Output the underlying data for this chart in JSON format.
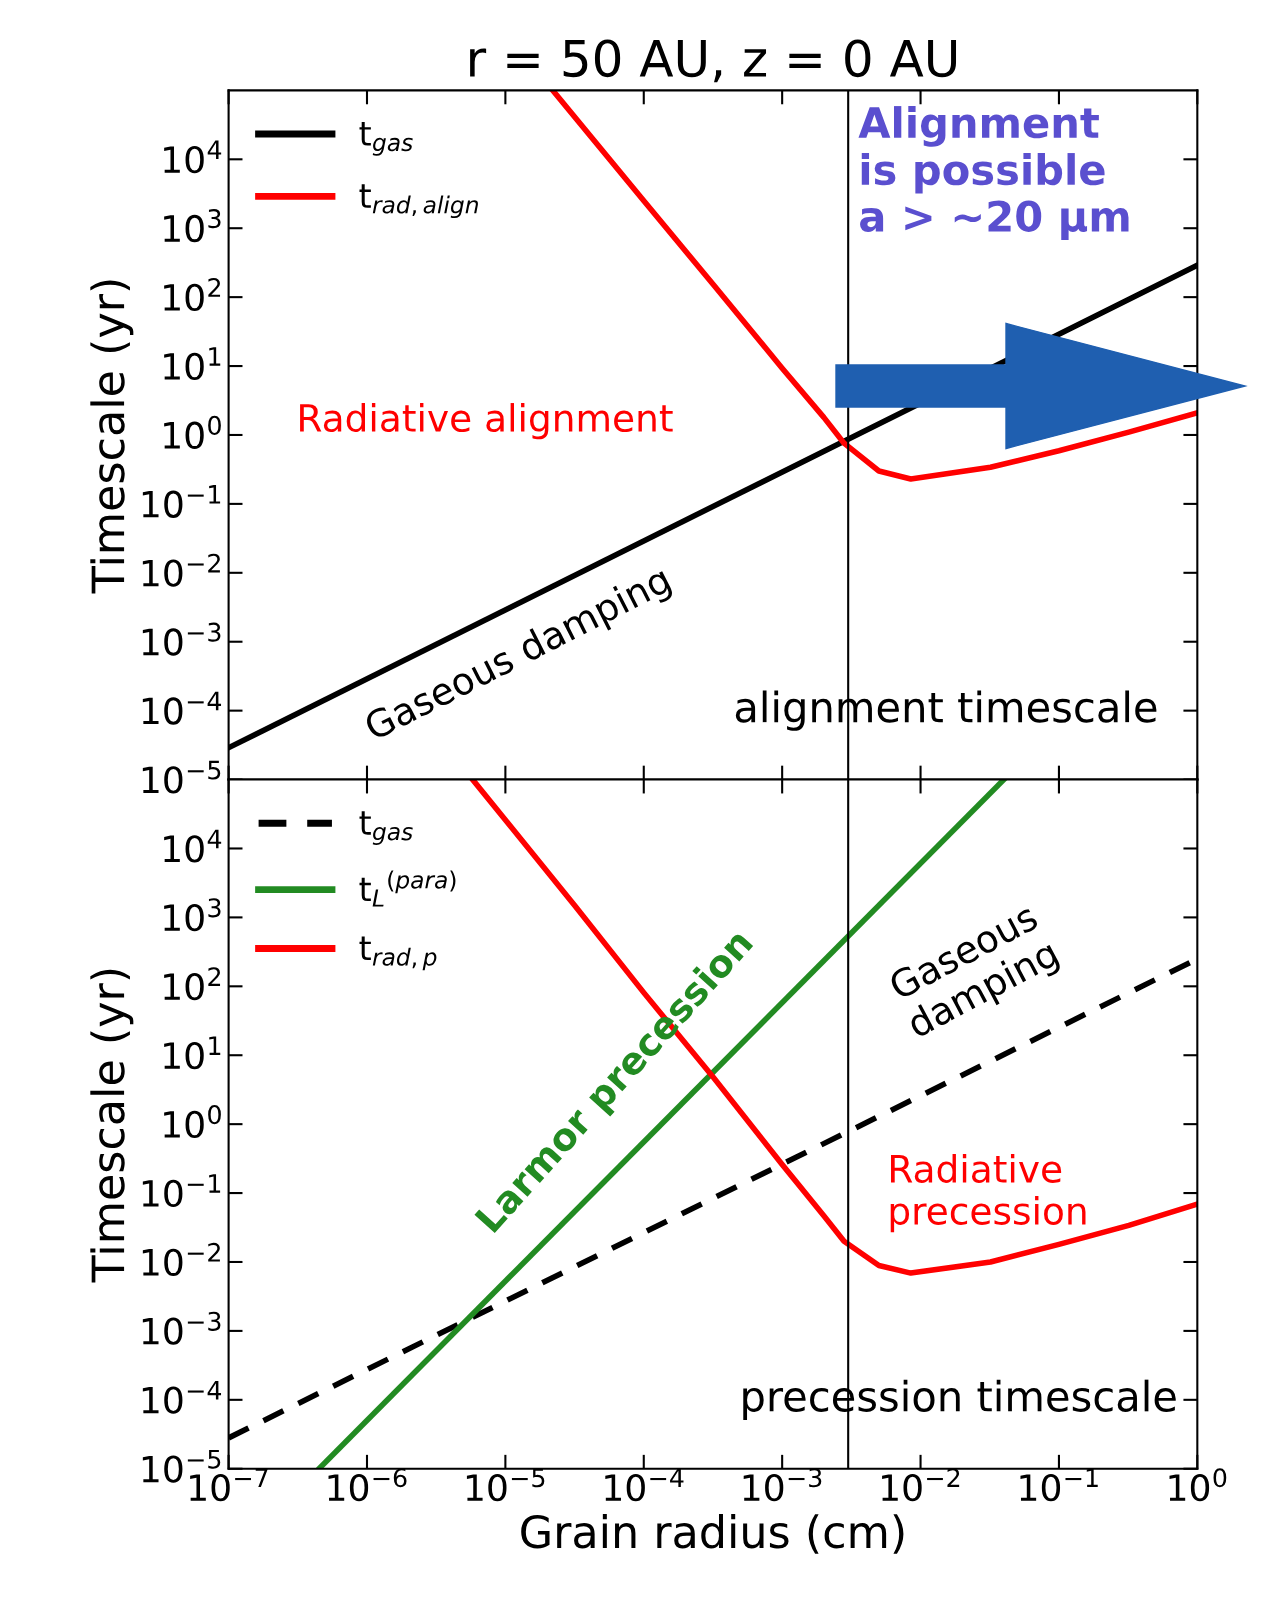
{
  "chart_data": [
    {
      "type": "line",
      "title": "r = 50 AU, z = 0 AU",
      "ylabel": "Timescale (yr)",
      "log": "xy",
      "grid": false,
      "legend": "top left",
      "tick_labels": "y",
      "xlim": [
        1e-07,
        1
      ],
      "ylim": [
        1e-05,
        100000.0
      ],
      "xticks": [
        {
          "value": 1e-07,
          "label": null
        },
        {
          "value": 1e-06,
          "label": null
        },
        {
          "value": 1e-05,
          "label": null
        },
        {
          "value": 0.0001,
          "label": null
        },
        {
          "value": 0.001,
          "label": null
        },
        {
          "value": 0.01,
          "label": null
        },
        {
          "value": 0.1,
          "label": null
        },
        {
          "value": 1,
          "label": null
        }
      ],
      "yticks": [
        {
          "value": 1e-05,
          "label": "10$^{−5}$"
        },
        {
          "value": 0.0001,
          "label": "10$^{−4}$"
        },
        {
          "value": 0.001,
          "label": "10$^{−3}$"
        },
        {
          "value": 0.01,
          "label": "10$^{−2}$"
        },
        {
          "value": 0.1,
          "label": "10$^{−1}$"
        },
        {
          "value": 1,
          "label": "10$^{0}$"
        },
        {
          "value": 10,
          "label": "10$^{1}$"
        },
        {
          "value": 100,
          "label": "10$^{2}$"
        },
        {
          "value": 1000,
          "label": "10$^{3}$"
        },
        {
          "value": 10000,
          "label": "10$^{4}$"
        }
      ],
      "series": [
        {
          "name": "t$_{gas}$",
          "color": "#000000",
          "line_style": "solid",
          "x": [
            1e-07,
            1
          ],
          "values": [
            2.9e-05,
            290
          ]
        },
        {
          "name": "t$_{rad,align}$",
          "color": "#ff0000",
          "line_style": "solid",
          "x": [
            2.2e-05,
            0.0001,
            0.00032,
            0.001,
            0.002,
            0.0028,
            0.005,
            0.0085,
            0.032,
            0.1,
            0.32,
            1
          ],
          "values": [
            100000.0,
            2500,
            150,
            9.3,
            1.8,
            0.76,
            0.3,
            0.23,
            0.34,
            0.59,
            1.1,
            2.1
          ]
        }
      ],
      "ref_lines": [
        {
          "axis": "x",
          "value": 0.003,
          "color": "#000000"
        }
      ],
      "annotations": [
        "Alignment\nis possible\na > ~20 μm",
        "Radiative alignment",
        "Gaseous damping",
        "alignment timescale"
      ]
    },
    {
      "type": "line",
      "xlabel": "Grain radius (cm)",
      "ylabel": "Timescale (yr)",
      "log": "xy",
      "grid": false,
      "legend": "top left",
      "xlim": [
        1e-07,
        1
      ],
      "ylim": [
        1e-05,
        100000.0
      ],
      "xticks": [
        {
          "value": 1e-07,
          "label": "10$^{−7}$"
        },
        {
          "value": 1e-06,
          "label": "10$^{−6}$"
        },
        {
          "value": 1e-05,
          "label": "10$^{−5}$"
        },
        {
          "value": 0.0001,
          "label": "10$^{−4}$"
        },
        {
          "value": 0.001,
          "label": "10$^{−3}$"
        },
        {
          "value": 0.01,
          "label": "10$^{−2}$"
        },
        {
          "value": 0.1,
          "label": "10$^{−1}$"
        },
        {
          "value": 1,
          "label": "10$^{0}$"
        }
      ],
      "yticks": [
        {
          "value": 1e-05,
          "label": "10$^{−5}$"
        },
        {
          "value": 0.0001,
          "label": "10$^{−4}$"
        },
        {
          "value": 0.001,
          "label": "10$^{−3}$"
        },
        {
          "value": 0.01,
          "label": "10$^{−2}$"
        },
        {
          "value": 0.1,
          "label": "10$^{−1}$"
        },
        {
          "value": 1,
          "label": "10$^{0}$"
        },
        {
          "value": 10,
          "label": "10$^{1}$"
        },
        {
          "value": 100,
          "label": "10$^{2}$"
        },
        {
          "value": 1000,
          "label": "10$^{3}$"
        },
        {
          "value": 10000,
          "label": "10$^{4}$"
        }
      ],
      "series": [
        {
          "name": "t$_{gas}$",
          "color": "#000000",
          "line_style": "dashed",
          "x": [
            1e-07,
            1
          ],
          "values": [
            2.8e-05,
            250
          ]
        },
        {
          "name": "t$_{L}$$^{(para)}$",
          "color": "#228b22",
          "line_style": "solid",
          "x": [
            4.5e-07,
            0.04
          ],
          "values": [
            1e-05,
            100000.0
          ]
        },
        {
          "name": "t$_{rad,p}$",
          "color": "#ff0000",
          "line_style": "solid",
          "x": [
            5.8e-06,
            3.2e-05,
            0.0001,
            0.00032,
            0.001,
            0.002,
            0.0028,
            0.005,
            0.0085,
            0.032,
            0.1,
            0.32,
            1
          ],
          "values": [
            100000.0,
            1450,
            81,
            4.7,
            0.26,
            0.047,
            0.02,
            0.0089,
            0.0069,
            0.01,
            0.018,
            0.034,
            0.069
          ]
        }
      ],
      "ref_lines": [
        {
          "axis": "x",
          "value": 0.003,
          "color": "#000000"
        }
      ],
      "annotations": [
        "Larmor precession",
        "Gaseous\ndamping",
        "Radiative\nprecession",
        "precession timescale"
      ]
    }
  ]
}
